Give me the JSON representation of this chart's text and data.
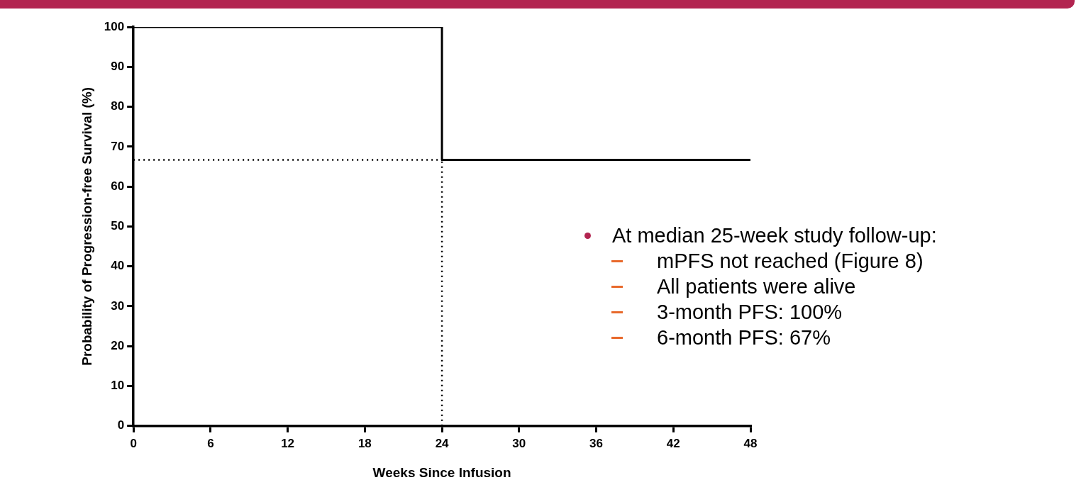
{
  "chart_data": {
    "type": "step",
    "xlabel": "Weeks Since Infusion",
    "ylabel": "Probability of Progression-free Survival (%)",
    "x": [
      0,
      24,
      48
    ],
    "series": [
      {
        "color": "#000000",
        "values": [
          100,
          66.7,
          66.7
        ]
      }
    ],
    "xlim": [
      0,
      48
    ],
    "xticks": [
      0,
      6,
      12,
      18,
      24,
      30,
      36,
      42,
      48
    ],
    "ylim": [
      0,
      100
    ],
    "yticks": [
      0,
      10,
      20,
      30,
      40,
      50,
      60,
      70,
      80,
      90,
      100
    ],
    "grid": false,
    "legend": false,
    "marker": "none",
    "line_style": "solid",
    "ref_lines": [
      {
        "axis": "y",
        "value": 66.7,
        "line_style": "dotted",
        "color": "#000000"
      },
      {
        "axis": "x",
        "value": 24,
        "line_style": "dotted",
        "color": "#000000"
      }
    ],
    "annotations": [
      "At median 25-week study follow-up:",
      "mPFS not reached (Figure 8)",
      "All patients were alive",
      "3-month PFS: 100%",
      "6-month PFS: 67%"
    ]
  }
}
